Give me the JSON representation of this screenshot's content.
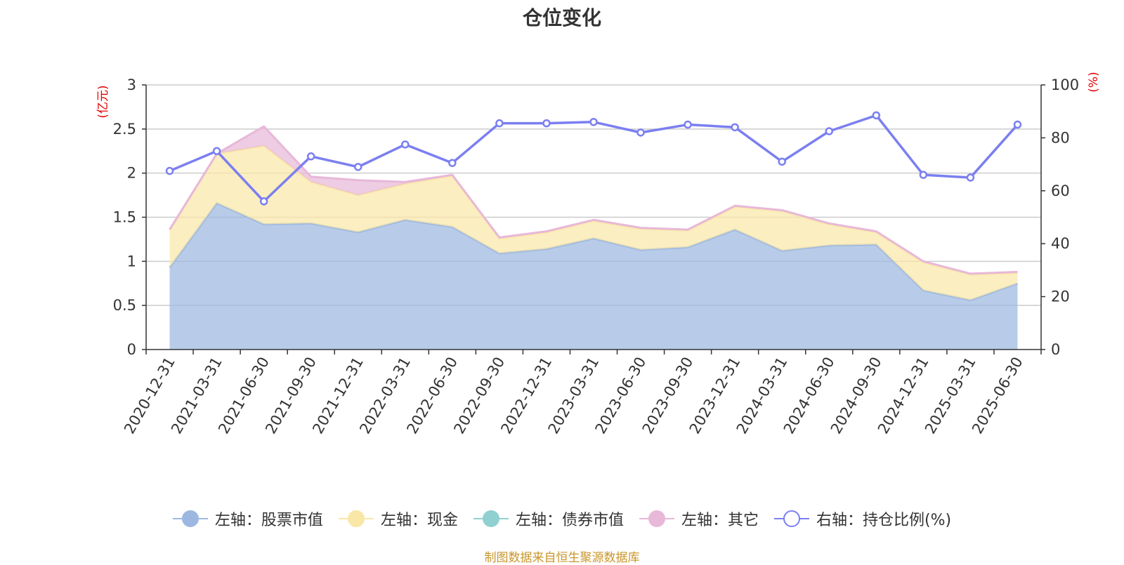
{
  "chart_data": {
    "type": "area",
    "title": "仓位变化",
    "categories": [
      "2020-12-31",
      "2021-03-31",
      "2021-06-30",
      "2021-09-30",
      "2021-12-31",
      "2022-03-31",
      "2022-06-30",
      "2022-09-30",
      "2022-12-31",
      "2023-03-31",
      "2023-06-30",
      "2023-09-30",
      "2023-12-31",
      "2024-03-31",
      "2024-06-30",
      "2024-09-30",
      "2024-12-31",
      "2025-03-31",
      "2025-06-30"
    ],
    "y_left": {
      "label": "(亿元)",
      "ylim": [
        0,
        3
      ],
      "ticks": [
        "0",
        "0.5",
        "1",
        "1.5",
        "2",
        "2.5",
        "3"
      ]
    },
    "y_right": {
      "label": "(%)",
      "ylim": [
        0,
        100
      ],
      "ticks": [
        "0",
        "20",
        "40",
        "60",
        "80",
        "100"
      ]
    },
    "grid": true,
    "legend_position": "bottom",
    "series": [
      {
        "name": "左轴：股票市值",
        "axis": "left",
        "kind": "stacked-area",
        "color": "#9db8e0",
        "values": [
          0.93,
          1.66,
          1.42,
          1.43,
          1.33,
          1.47,
          1.39,
          1.09,
          1.14,
          1.26,
          1.13,
          1.16,
          1.36,
          1.12,
          1.18,
          1.19,
          0.67,
          0.56,
          0.75
        ]
      },
      {
        "name": "左轴：现金",
        "axis": "left",
        "kind": "stacked-area",
        "color": "#f9e7a8",
        "values": [
          0.43,
          0.56,
          0.89,
          0.47,
          0.42,
          0.41,
          0.58,
          0.17,
          0.19,
          0.2,
          0.24,
          0.19,
          0.26,
          0.45,
          0.24,
          0.14,
          0.32,
          0.29,
          0.12
        ]
      },
      {
        "name": "左轴：债券市值",
        "axis": "left",
        "kind": "stacked-area",
        "color": "#91d0d0",
        "values": [
          0,
          0,
          0,
          0,
          0,
          0,
          0,
          0,
          0,
          0,
          0,
          0,
          0,
          0,
          0,
          0,
          0,
          0,
          0
        ]
      },
      {
        "name": "左轴：其它",
        "axis": "left",
        "kind": "stacked-area",
        "color": "#e8b8d8",
        "values": [
          0,
          0,
          0.22,
          0.06,
          0.17,
          0.02,
          0.01,
          0.01,
          0.01,
          0.01,
          0.01,
          0.01,
          0.01,
          0.01,
          0.01,
          0.01,
          0.01,
          0.01,
          0.01
        ]
      },
      {
        "name": "右轴：持仓比例(%)",
        "axis": "right",
        "kind": "line",
        "color": "#7b7ff0",
        "values": [
          67.5,
          75,
          56,
          73,
          69,
          77.5,
          70.5,
          85.5,
          85.5,
          86,
          82,
          85,
          84,
          71,
          82.5,
          88.5,
          66,
          65,
          85
        ]
      }
    ]
  },
  "source_text": "制图数据来自恒生聚源数据库",
  "colors": {
    "axis_label_red": "#e00000",
    "grid": "#cccccc",
    "text": "#333333",
    "source": "#c8962c"
  }
}
